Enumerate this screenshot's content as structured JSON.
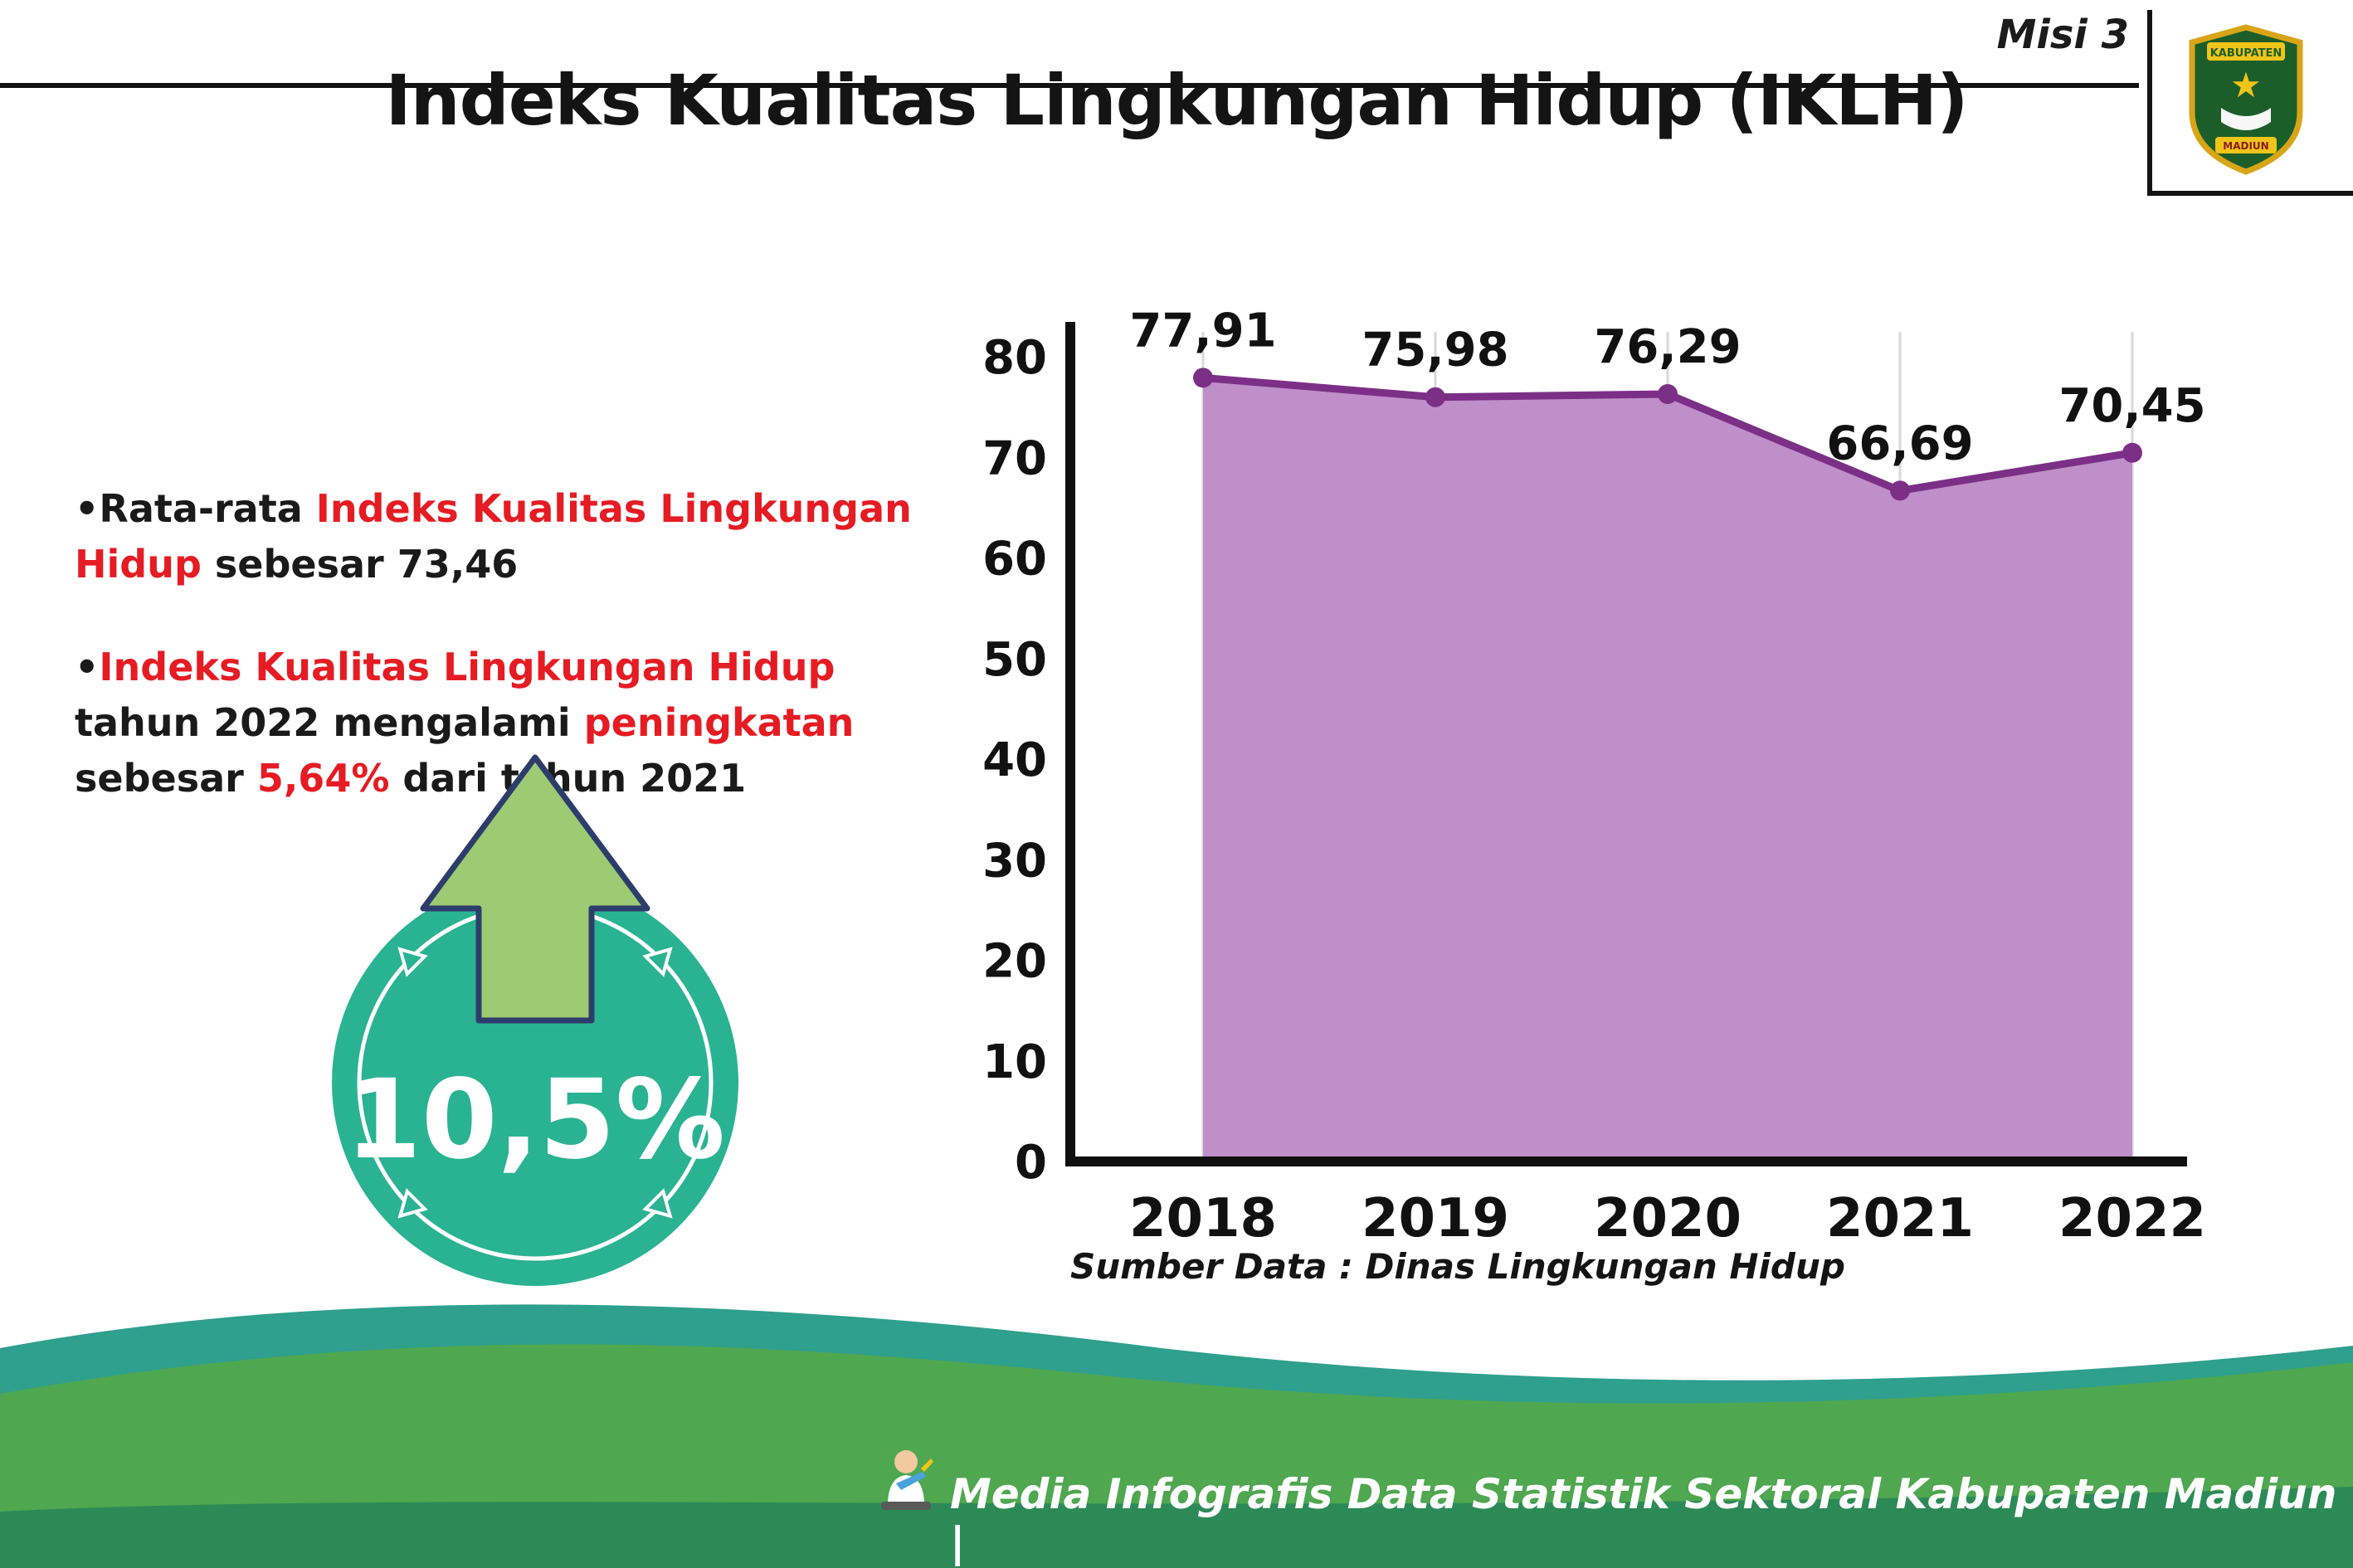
{
  "header": {
    "misi_label": "Misi 3",
    "title": "Indeks Kualitas Lingkungan Hidup (IKLH)"
  },
  "logo": {
    "top_text": "KABUPATEN",
    "bottom_text": "MADIUN"
  },
  "bullets": {
    "marker": "•",
    "b1": {
      "pre": "Rata-rata ",
      "red": "Indeks Kualitas Lingkungan Hidup",
      "post": " sebesar 73,46"
    },
    "b2": {
      "red1": "Indeks Kualitas Lingkungan Hidup",
      "t1": " tahun 2022 mengalami ",
      "red2": "peningkatan",
      "t2": " sebesar ",
      "red3": "5,64%",
      "t3": " dari tahun 2021"
    }
  },
  "badge": {
    "value": "10,5%",
    "circle_color": "#2ab392",
    "arrow_fill": "#9dca72",
    "arrow_outline": "#2d3d6b"
  },
  "chart_data": {
    "type": "area",
    "title": "",
    "xlabel": "",
    "ylabel": "",
    "categories": [
      "2018",
      "2019",
      "2020",
      "2021",
      "2022"
    ],
    "values": [
      77.91,
      75.98,
      76.29,
      66.69,
      70.45
    ],
    "point_labels": [
      "77,91",
      "75,98",
      "76,29",
      "66,69",
      "70,45"
    ],
    "ylim": [
      0,
      80
    ],
    "yticks": [
      0,
      10,
      20,
      30,
      40,
      50,
      60,
      70,
      80
    ],
    "grid": "vertical-light",
    "legend": "none",
    "line_color": "#7c2f87",
    "fill_color": "#bf8fc9",
    "axis_color": "#0f0f0f"
  },
  "source_note": "Sumber Data : Dinas Lingkungan Hidup",
  "footer": {
    "text": "Media Infografis Data Statistik Sektoral Kabupaten Madiun |",
    "wave_teal": "#2f9f8e",
    "wave_green": "#4fa74f",
    "wave_dark": "#2c8a57"
  }
}
